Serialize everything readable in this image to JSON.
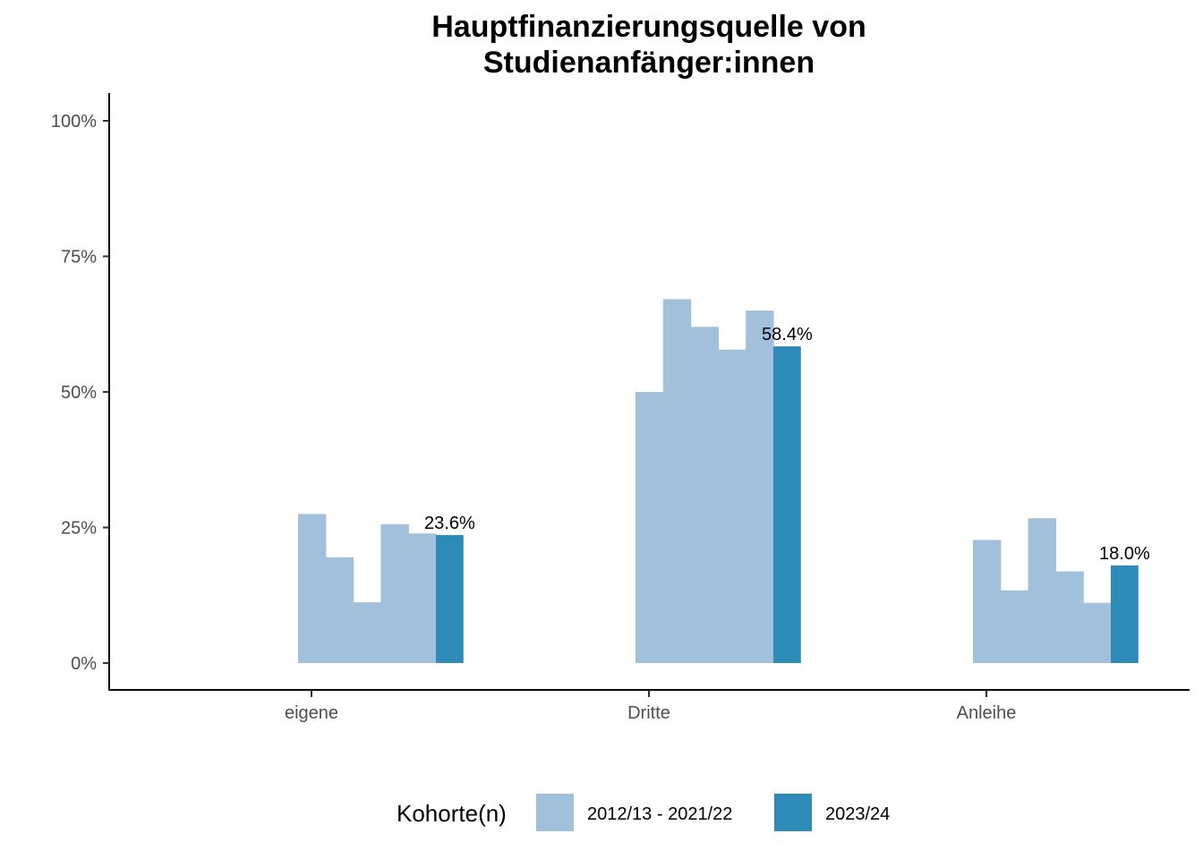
{
  "chart_data": {
    "type": "bar",
    "title_lines": [
      "Hauptfinanzierungsquelle von",
      "Studienanfänger:innen"
    ],
    "xlabel": "",
    "ylabel": "",
    "categories": [
      "eigene",
      "Dritte",
      "Anleihe"
    ],
    "ylim": [
      0,
      100
    ],
    "y_ticks": [
      0,
      25,
      50,
      75,
      100
    ],
    "y_tick_labels": [
      "0%",
      "25%",
      "50%",
      "75%",
      "100%"
    ],
    "grid": false,
    "legend": {
      "title": "Kohorte(n)",
      "position": "bottom",
      "entries": [
        {
          "label": "2012/13 - 2021/22",
          "color": "#a1c0dc"
        },
        {
          "label": "2023/24",
          "color": "#2e8bb8"
        }
      ]
    },
    "series": [
      {
        "name": "2012/13 - 2021/22",
        "color": "#a1c0dc",
        "values": [
          [
            27.5,
            19.5,
            11.2,
            25.6,
            23.9
          ],
          [
            50.0,
            67.1,
            62.0,
            57.8,
            65.0
          ],
          [
            22.7,
            13.4,
            26.7,
            16.9,
            11.1
          ]
        ]
      },
      {
        "name": "2023/24",
        "color": "#2e8bb8",
        "values": [
          23.6,
          58.4,
          18.0
        ],
        "labels": [
          "23.6%",
          "58.4%",
          "18.0%"
        ]
      }
    ]
  }
}
